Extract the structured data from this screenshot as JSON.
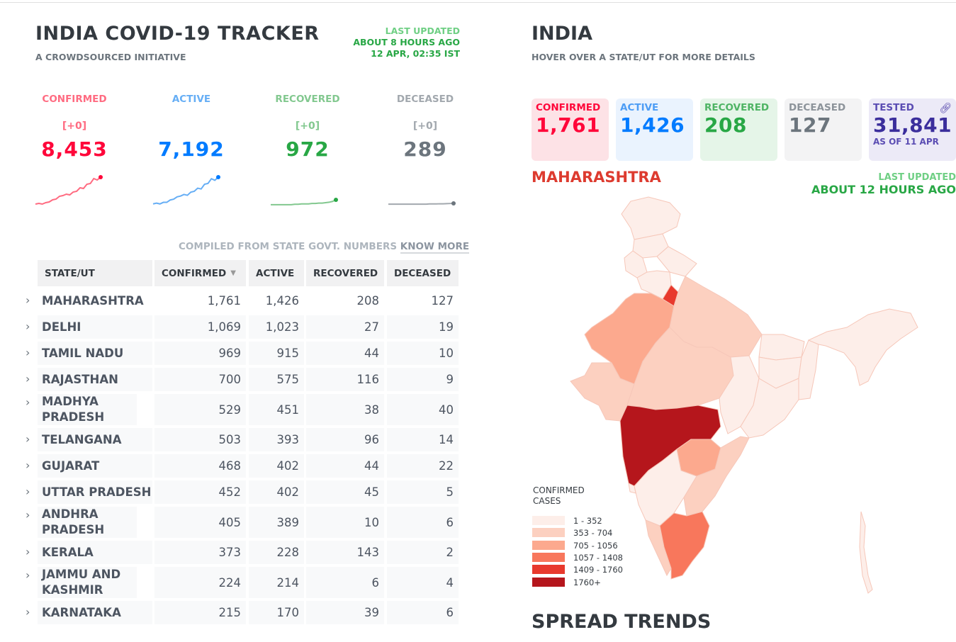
{
  "header": {
    "title": "INDIA COVID-19 TRACKER",
    "subtitle": "A CROWDSOURCED INITIATIVE",
    "last_updated_label": "LAST UPDATED",
    "last_updated_ago": "ABOUT 8 HOURS AGO",
    "last_updated_time": "12 APR, 02:35 IST"
  },
  "stats": [
    {
      "label": "CONFIRMED",
      "delta": "[+0]",
      "value": "8,453",
      "color": "#ff073a",
      "label_color": "#ff6b81",
      "spark": [
        2,
        3,
        2,
        4,
        5,
        8,
        9,
        13,
        14,
        16,
        15,
        19,
        20,
        25,
        24,
        30,
        31,
        38,
        36,
        40
      ]
    },
    {
      "label": "ACTIVE",
      "delta": "",
      "value": "7,192",
      "color": "#007bff",
      "label_color": "#66aef5",
      "spark": [
        2,
        3,
        2,
        4,
        4,
        7,
        8,
        11,
        12,
        14,
        13,
        17,
        18,
        22,
        21,
        27,
        28,
        34,
        32,
        36
      ]
    },
    {
      "label": "RECOVERED",
      "delta": "[+0]",
      "value": "972",
      "color": "#28a745",
      "label_color": "#82c88f",
      "spark": [
        1,
        1,
        1,
        1,
        1,
        1,
        1,
        1.5,
        1.5,
        2,
        2,
        2,
        2.5,
        2.5,
        3,
        3,
        3.5,
        4,
        5,
        7
      ]
    },
    {
      "label": "DECEASED",
      "delta": "[+0]",
      "value": "289",
      "color": "#6c757d",
      "label_color": "#a2a8ae",
      "spark": [
        1,
        1,
        1,
        1,
        1,
        1,
        1,
        1,
        1,
        1,
        1,
        1,
        1.2,
        1.2,
        1.2,
        1.3,
        1.3,
        1.4,
        1.5,
        1.6
      ]
    }
  ],
  "table": {
    "compiled_text": "COMPILED FROM STATE GOVT. NUMBERS",
    "know_more": "KNOW MORE",
    "headers": [
      "STATE/UT",
      "CONFIRMED",
      "ACTIVE",
      "RECOVERED",
      "DECEASED"
    ],
    "rows": [
      {
        "state": "MAHARASHTRA",
        "confirmed": "1,761",
        "active": "1,426",
        "recovered": "208",
        "deceased": "127"
      },
      {
        "state": "DELHI",
        "confirmed": "1,069",
        "active": "1,023",
        "recovered": "27",
        "deceased": "19"
      },
      {
        "state": "TAMIL NADU",
        "confirmed": "969",
        "active": "915",
        "recovered": "44",
        "deceased": "10"
      },
      {
        "state": "RAJASTHAN",
        "confirmed": "700",
        "active": "575",
        "recovered": "116",
        "deceased": "9"
      },
      {
        "state": "MADHYA PRADESH",
        "confirmed": "529",
        "active": "451",
        "recovered": "38",
        "deceased": "40"
      },
      {
        "state": "TELANGANA",
        "confirmed": "503",
        "active": "393",
        "recovered": "96",
        "deceased": "14"
      },
      {
        "state": "GUJARAT",
        "confirmed": "468",
        "active": "402",
        "recovered": "44",
        "deceased": "22"
      },
      {
        "state": "UTTAR PRADESH",
        "confirmed": "452",
        "active": "402",
        "recovered": "45",
        "deceased": "5"
      },
      {
        "state": "ANDHRA PRADESH",
        "confirmed": "405",
        "active": "389",
        "recovered": "10",
        "deceased": "6"
      },
      {
        "state": "KERALA",
        "confirmed": "373",
        "active": "228",
        "recovered": "143",
        "deceased": "2"
      },
      {
        "state": "JAMMU AND KASHMIR",
        "confirmed": "224",
        "active": "214",
        "recovered": "6",
        "deceased": "4"
      },
      {
        "state": "KARNATAKA",
        "confirmed": "215",
        "active": "170",
        "recovered": "39",
        "deceased": "6"
      }
    ]
  },
  "map_panel": {
    "title": "INDIA",
    "subtitle": "HOVER OVER A STATE/UT FOR MORE DETAILS",
    "cards": [
      {
        "label": "CONFIRMED",
        "value": "1,761",
        "sub": "",
        "bg": "#fde2e6",
        "label_color": "#ff073a",
        "value_color": "#ff073a"
      },
      {
        "label": "ACTIVE",
        "value": "1,426",
        "sub": "",
        "bg": "#eaf3fe",
        "label_color": "#4d9df5",
        "value_color": "#007bff"
      },
      {
        "label": "RECOVERED",
        "value": "208",
        "sub": "",
        "bg": "#e5f5e8",
        "label_color": "#4fb464",
        "value_color": "#28a745"
      },
      {
        "label": "DECEASED",
        "value": "127",
        "sub": "",
        "bg": "#f3f3f4",
        "label_color": "#8c939a",
        "value_color": "#6c757d"
      },
      {
        "label": "TESTED",
        "value": "31,841",
        "sub": "AS OF 11 APR",
        "bg": "#eceaf7",
        "label_color": "#5b4db3",
        "value_color": "#3b2e9c"
      }
    ],
    "selected_state": "MAHARASHTRA",
    "last_updated_label": "LAST UPDATED",
    "last_updated_ago": "ABOUT 12 HOURS AGO",
    "legend_title_1": "CONFIRMED",
    "legend_title_2": "CASES",
    "legend": [
      {
        "label": "1 - 352",
        "color": "#fdeee9"
      },
      {
        "label": "353 - 704",
        "color": "#fcd0c0"
      },
      {
        "label": "705 - 1056",
        "color": "#fca98e"
      },
      {
        "label": "1057 - 1408",
        "color": "#f8775c"
      },
      {
        "label": "1409 - 1760",
        "color": "#e8392d"
      },
      {
        "label": "1760+",
        "color": "#b5161c"
      }
    ]
  },
  "spread_trends": "SPREAD TRENDS"
}
